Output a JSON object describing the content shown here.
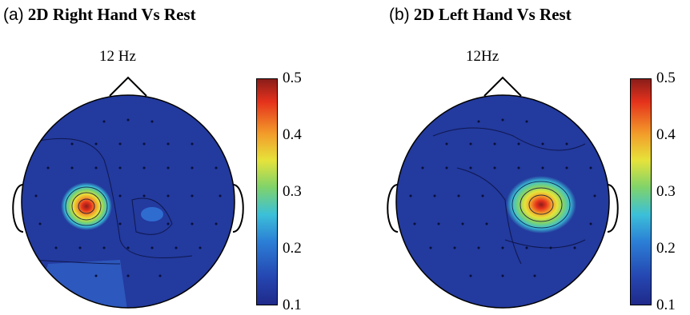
{
  "figure": {
    "panels": [
      {
        "letter": "(a)",
        "title": "2D Right Hand Vs Rest",
        "frequency": "12 Hz",
        "colorbar": {
          "ticks": [
            "0.5",
            "0.4",
            "0.3",
            "0.2",
            "0.1"
          ]
        },
        "hotspot_side": "left"
      },
      {
        "letter": "(b)",
        "title": "2D Left Hand Vs Rest",
        "frequency": "12Hz",
        "colorbar": {
          "ticks": [
            "0.5",
            "0.4",
            "0.3",
            "0.2",
            "0.1"
          ]
        },
        "hotspot_side": "right"
      }
    ],
    "colormap": [
      "#1f2a8a",
      "#2b7fd6",
      "#3cc0d8",
      "#7fd36b",
      "#e6e33a",
      "#f39b2a",
      "#e5321c",
      "#8a1d1a"
    ],
    "scalp_color": "#233a9e"
  }
}
